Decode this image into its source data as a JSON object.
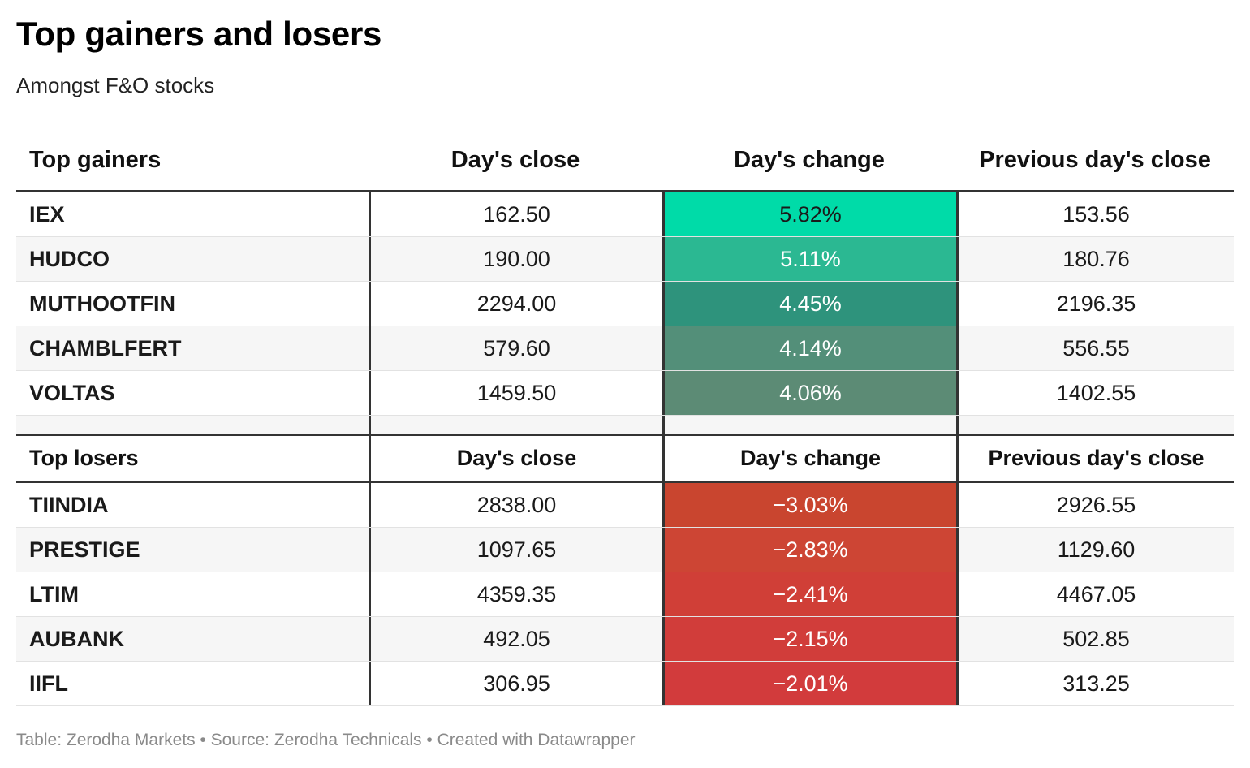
{
  "title": "Top gainers and losers",
  "subtitle": "Amongst F&O stocks",
  "columns": {
    "gainers": [
      "Top gainers",
      "Day's close",
      "Day's change",
      "Previous day's close"
    ],
    "losers": [
      "Top losers",
      "Day's close",
      "Day's change",
      "Previous day's close"
    ]
  },
  "gainers": [
    {
      "name": "IEX",
      "close": "162.50",
      "change": "5.82%",
      "prev": "153.56",
      "color": "#00dba8",
      "dark_text": true
    },
    {
      "name": "HUDCO",
      "close": "190.00",
      "change": "5.11%",
      "prev": "180.76",
      "color": "#2bb892"
    },
    {
      "name": "MUTHOOTFIN",
      "close": "2294.00",
      "change": "4.45%",
      "prev": "2196.35",
      "color": "#2e937c"
    },
    {
      "name": "CHAMBLFERT",
      "close": "579.60",
      "change": "4.14%",
      "prev": "556.55",
      "color": "#538f79"
    },
    {
      "name": "VOLTAS",
      "close": "1459.50",
      "change": "4.06%",
      "prev": "1402.55",
      "color": "#5c8b75"
    }
  ],
  "losers": [
    {
      "name": "TIINDIA",
      "close": "2838.00",
      "change": "−3.03%",
      "prev": "2926.55",
      "color": "#c9452f"
    },
    {
      "name": "PRESTIGE",
      "close": "1097.65",
      "change": "−2.83%",
      "prev": "1129.60",
      "color": "#cd4534"
    },
    {
      "name": "LTIM",
      "close": "4359.35",
      "change": "−2.41%",
      "prev": "4467.05",
      "color": "#d03f37"
    },
    {
      "name": "AUBANK",
      "close": "492.05",
      "change": "−2.15%",
      "prev": "502.85",
      "color": "#d13d3a"
    },
    {
      "name": "IIFL",
      "close": "306.95",
      "change": "−2.01%",
      "prev": "313.25",
      "color": "#d23b3c"
    }
  ],
  "footer": "Table: Zerodha Markets • Source: Zerodha Technicals • Created with Datawrapper",
  "chart_data": {
    "type": "table",
    "title": "Top gainers and losers",
    "subtitle": "Amongst F&O stocks",
    "sections": [
      {
        "header": [
          "Top gainers",
          "Day's close",
          "Day's change",
          "Previous day's close"
        ],
        "rows": [
          [
            "IEX",
            162.5,
            5.82,
            153.56
          ],
          [
            "HUDCO",
            190.0,
            5.11,
            180.76
          ],
          [
            "MUTHOOTFIN",
            2294.0,
            4.45,
            2196.35
          ],
          [
            "CHAMBLFERT",
            579.6,
            4.14,
            556.55
          ],
          [
            "VOLTAS",
            1459.5,
            4.06,
            1402.55
          ]
        ]
      },
      {
        "header": [
          "Top losers",
          "Day's close",
          "Day's change",
          "Previous day's close"
        ],
        "rows": [
          [
            "TIINDIA",
            2838.0,
            -3.03,
            2926.55
          ],
          [
            "PRESTIGE",
            1097.65,
            -2.83,
            1129.6
          ],
          [
            "LTIM",
            4359.35,
            -2.41,
            4467.05
          ],
          [
            "AUBANK",
            492.05,
            -2.15,
            502.85
          ],
          [
            "IIFL",
            306.95,
            -2.01,
            313.25
          ]
        ]
      }
    ]
  }
}
